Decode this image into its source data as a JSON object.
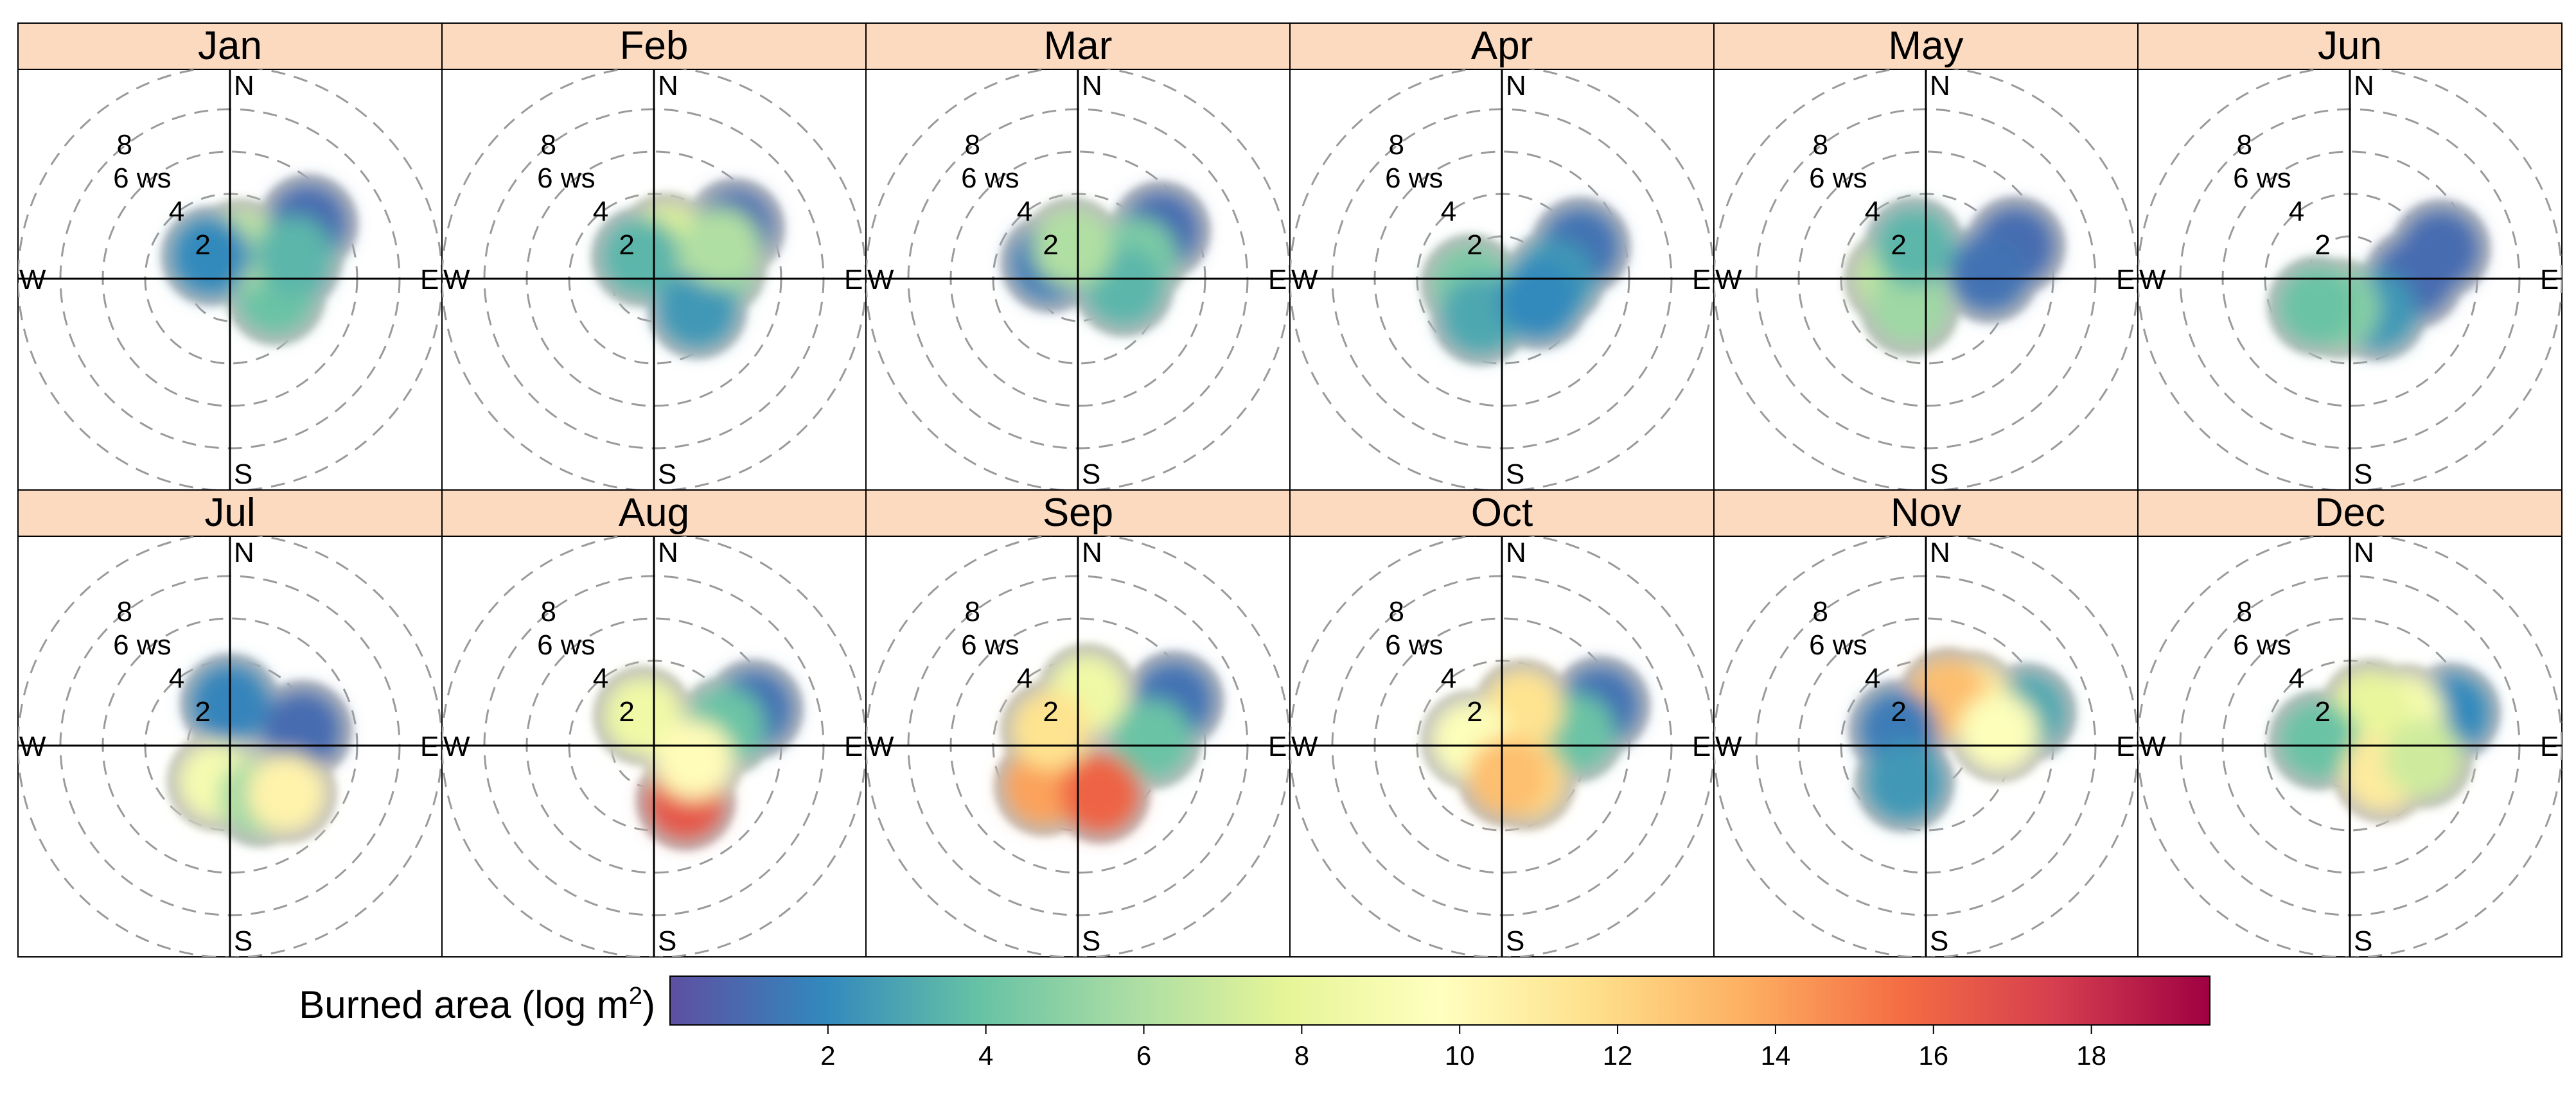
{
  "chart_data": {
    "type": "polar-kde",
    "title": "",
    "description_variable": "Burned area by wind direction and wind speed, faceted by month",
    "panels": [
      {
        "month": "Jan",
        "blobs": [
          {
            "r": 3.0,
            "theta": 75,
            "v": 1.2
          },
          {
            "r": 4.5,
            "theta": 55,
            "v": 1.0
          },
          {
            "r": 2.3,
            "theta": 110,
            "v": 4.0
          },
          {
            "r": 1.5,
            "theta": 20,
            "v": 6.5
          },
          {
            "r": 1.4,
            "theta": -40,
            "v": 2.0
          },
          {
            "r": 3.2,
            "theta": 70,
            "v": 3.5
          }
        ]
      },
      {
        "month": "Feb",
        "blobs": [
          {
            "r": 4.5,
            "theta": 58,
            "v": 1.0
          },
          {
            "r": 3.0,
            "theta": 80,
            "v": 4.5
          },
          {
            "r": 1.8,
            "theta": 20,
            "v": 7.5
          },
          {
            "r": 1.2,
            "theta": -30,
            "v": 3.5
          },
          {
            "r": 2.5,
            "theta": 125,
            "v": 2.5
          },
          {
            "r": 3.5,
            "theta": 65,
            "v": 6.0
          }
        ]
      },
      {
        "month": "Mar",
        "blobs": [
          {
            "r": 4.5,
            "theta": 60,
            "v": 1.0
          },
          {
            "r": 3.0,
            "theta": 70,
            "v": 4.5
          },
          {
            "r": 2.2,
            "theta": 100,
            "v": 3.5
          },
          {
            "r": 1.5,
            "theta": -60,
            "v": 1.5
          },
          {
            "r": 1.5,
            "theta": -10,
            "v": 6.0
          }
        ]
      },
      {
        "month": "Apr",
        "blobs": [
          {
            "r": 4.0,
            "theta": 68,
            "v": 1.2
          },
          {
            "r": 2.5,
            "theta": 90,
            "v": 2.5
          },
          {
            "r": 1.5,
            "theta": -100,
            "v": 4.5
          },
          {
            "r": 2.0,
            "theta": -150,
            "v": 3.0
          },
          {
            "r": 2.0,
            "theta": 120,
            "v": 2.0
          }
        ]
      },
      {
        "month": "May",
        "blobs": [
          {
            "r": 4.5,
            "theta": 70,
            "v": 1.0
          },
          {
            "r": 3.0,
            "theta": 85,
            "v": 1.2
          },
          {
            "r": 1.5,
            "theta": -90,
            "v": 6.5
          },
          {
            "r": 1.5,
            "theta": -150,
            "v": 5.5
          },
          {
            "r": 1.6,
            "theta": -20,
            "v": 3.5
          }
        ]
      },
      {
        "month": "Jun",
        "blobs": [
          {
            "r": 4.5,
            "theta": 72,
            "v": 1.0
          },
          {
            "r": 3.0,
            "theta": 90,
            "v": 1.0
          },
          {
            "r": 2.0,
            "theta": 140,
            "v": 2.5
          },
          {
            "r": 1.5,
            "theta": -160,
            "v": 5.0
          },
          {
            "r": 2.0,
            "theta": -130,
            "v": 4.0
          }
        ]
      },
      {
        "month": "Jul",
        "blobs": [
          {
            "r": 3.5,
            "theta": 78,
            "v": 1.0
          },
          {
            "r": 2.0,
            "theta": 0,
            "v": 1.8
          },
          {
            "r": 1.8,
            "theta": -160,
            "v": 9.0
          },
          {
            "r": 2.8,
            "theta": 150,
            "v": 5.5
          },
          {
            "r": 3.5,
            "theta": 130,
            "v": 10.5
          }
        ]
      },
      {
        "month": "Aug",
        "blobs": [
          {
            "r": 5.0,
            "theta": 70,
            "v": 1.2
          },
          {
            "r": 3.5,
            "theta": 75,
            "v": 4.0
          },
          {
            "r": 1.5,
            "theta": -20,
            "v": 8.5
          },
          {
            "r": 3.0,
            "theta": 150,
            "v": 16.5
          },
          {
            "r": 2.0,
            "theta": 110,
            "v": 10.0
          }
        ]
      },
      {
        "month": "Sep",
        "blobs": [
          {
            "r": 5.0,
            "theta": 65,
            "v": 1.2
          },
          {
            "r": 3.5,
            "theta": 85,
            "v": 4.0
          },
          {
            "r": 2.5,
            "theta": 10,
            "v": 8.5
          },
          {
            "r": 2.5,
            "theta": -140,
            "v": 14.0
          },
          {
            "r": 2.5,
            "theta": 155,
            "v": 16.0
          },
          {
            "r": 1.5,
            "theta": -60,
            "v": 11.5
          }
        ]
      },
      {
        "month": "Oct",
        "blobs": [
          {
            "r": 5.0,
            "theta": 68,
            "v": 1.2
          },
          {
            "r": 3.5,
            "theta": 80,
            "v": 4.0
          },
          {
            "r": 2.0,
            "theta": 30,
            "v": 11.5
          },
          {
            "r": 1.5,
            "theta": -80,
            "v": 9.5
          },
          {
            "r": 2.0,
            "theta": 145,
            "v": 12.0
          },
          {
            "r": 1.5,
            "theta": 170,
            "v": 13.0
          }
        ]
      },
      {
        "month": "Nov",
        "blobs": [
          {
            "r": 5.0,
            "theta": 72,
            "v": 3.0
          },
          {
            "r": 3.0,
            "theta": 45,
            "v": 11.0
          },
          {
            "r": 2.5,
            "theta": 25,
            "v": 13.0
          },
          {
            "r": 1.5,
            "theta": -60,
            "v": 1.5
          },
          {
            "r": 2.0,
            "theta": -150,
            "v": 2.5
          },
          {
            "r": 3.5,
            "theta": 80,
            "v": 9.5
          }
        ]
      },
      {
        "month": "Dec",
        "blobs": [
          {
            "r": 5.0,
            "theta": 72,
            "v": 2.0
          },
          {
            "r": 3.0,
            "theta": 60,
            "v": 9.0
          },
          {
            "r": 2.0,
            "theta": 30,
            "v": 8.0
          },
          {
            "r": 1.5,
            "theta": -80,
            "v": 4.0
          },
          {
            "r": 2.0,
            "theta": 130,
            "v": 11.0
          },
          {
            "r": 3.5,
            "theta": 100,
            "v": 7.0
          }
        ]
      }
    ],
    "polar_axis": {
      "compass_labels": {
        "north": "N",
        "south": "S",
        "east": "E",
        "west": "W"
      },
      "rings": [
        2,
        4,
        6,
        8
      ],
      "ring_labels": [
        "2",
        "4",
        "6 ws",
        "8"
      ],
      "r_max": 10
    },
    "colorbar": {
      "title": "Burned area (log m",
      "title_superscript": "2",
      "title_end": ")",
      "range": [
        0,
        19.5
      ],
      "ticks": [
        2,
        4,
        6,
        8,
        10,
        12,
        14,
        16,
        18
      ],
      "tick_labels": [
        "2",
        "4",
        "6",
        "8",
        "10",
        "12",
        "14",
        "16",
        "18"
      ],
      "colors": [
        "#5e4fa2",
        "#3288bd",
        "#66c2a5",
        "#abdda4",
        "#e6f598",
        "#ffffbf",
        "#fee08b",
        "#fdae61",
        "#f46d43",
        "#d53e4f",
        "#9e0142"
      ]
    },
    "colors": {
      "strip_fill": "#fcdac0",
      "grid_ring": "#9a9a9a",
      "outer_halo": "#bdbdbd",
      "axis_line": "#000000"
    }
  }
}
